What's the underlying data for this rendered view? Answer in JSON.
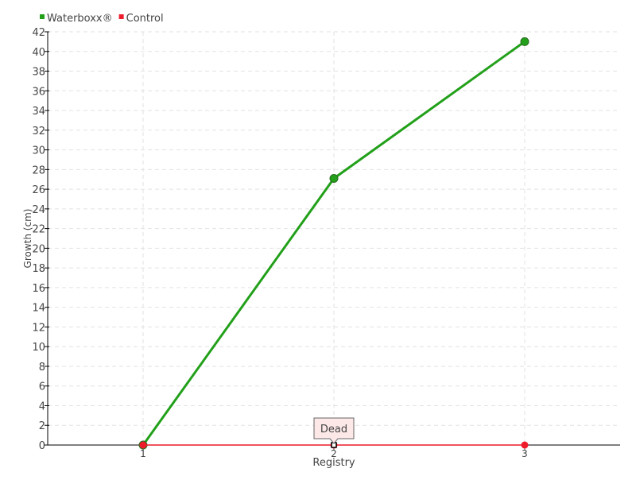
{
  "chart_data": {
    "type": "line",
    "title": "",
    "xlabel": "Registry",
    "ylabel": "Growth (cm)",
    "categories": [
      "1",
      "2",
      "3"
    ],
    "ylim": [
      0,
      42
    ],
    "ytick_step": 2,
    "grid": true,
    "legend_placement": "top-left",
    "series": [
      {
        "name": "Waterboxx®",
        "values": [
          0,
          27.1,
          41
        ],
        "color": "#22a01a"
      },
      {
        "name": "Control",
        "values": [
          0,
          0,
          0
        ],
        "color": "#ee1c2a"
      }
    ],
    "annotations": [
      {
        "text": "Dead",
        "series": "Control",
        "category": "2"
      }
    ]
  }
}
